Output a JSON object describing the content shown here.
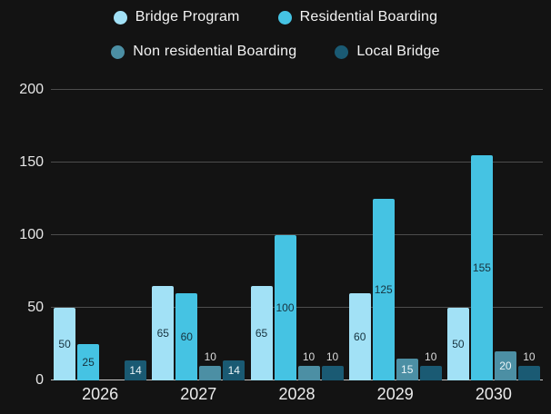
{
  "page": {
    "background": "#131313"
  },
  "chart_data": {
    "type": "bar",
    "title": "",
    "xlabel": "",
    "ylabel": "",
    "categories": [
      "2026",
      "2027",
      "2028",
      "2029",
      "2030"
    ],
    "series": [
      {
        "name": "Bridge Program",
        "color": "#a2e1f6",
        "value_label_color": "#16323e",
        "values": [
          50,
          65,
          65,
          60,
          50
        ]
      },
      {
        "name": "Residential Boarding",
        "color": "#45c3e3",
        "value_label_color": "#16323e",
        "values": [
          25,
          60,
          100,
          125,
          155
        ]
      },
      {
        "name": "Non residential Boarding",
        "color": "#4c8fa4",
        "value_label_color": "#eaf4f7",
        "values": [
          null,
          10,
          10,
          15,
          20
        ]
      },
      {
        "name": "Local Bridge",
        "color": "#1a5a73",
        "value_label_color": "#eaf4f7",
        "values": [
          14,
          14,
          10,
          10,
          10
        ]
      }
    ],
    "ylim": [
      0,
      200
    ],
    "yticks": [
      0,
      50,
      100,
      150,
      200
    ],
    "grid": true,
    "gridline_color": "#4d4d4d",
    "baseline_color": "#c7c7c7",
    "legend_position": "top",
    "value_labels": true
  }
}
